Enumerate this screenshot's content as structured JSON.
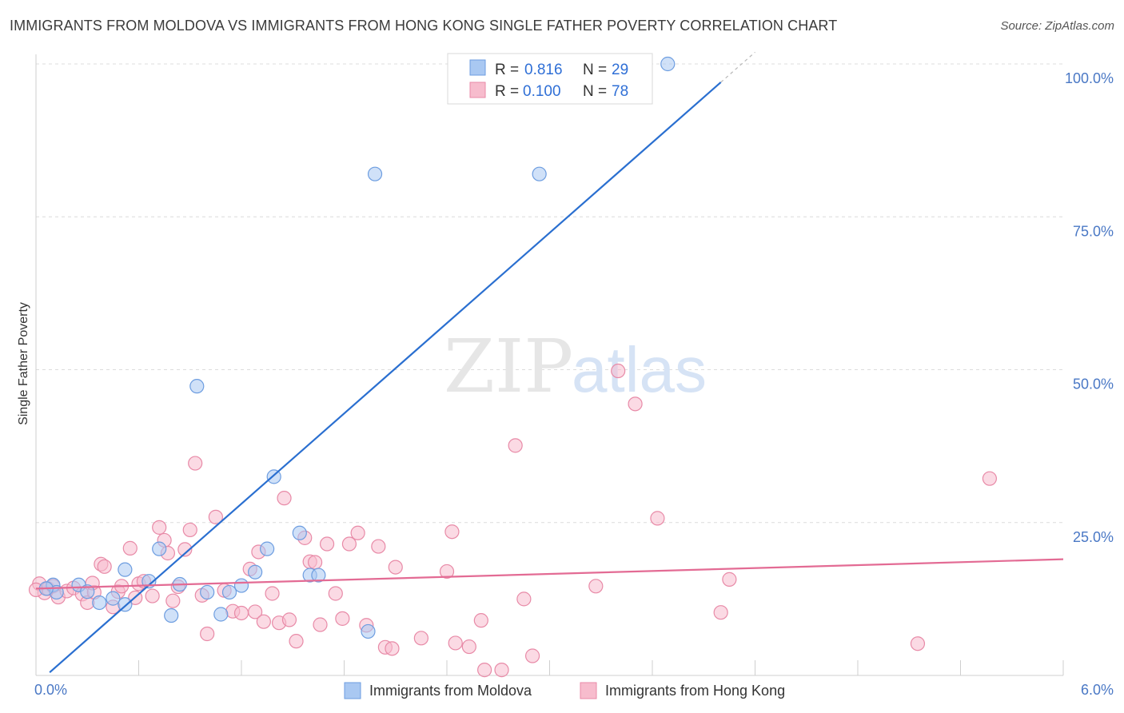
{
  "header": {
    "title": "IMMIGRANTS FROM MOLDOVA VS IMMIGRANTS FROM HONG KONG SINGLE FATHER POVERTY CORRELATION CHART",
    "source": "Source: ZipAtlas.com"
  },
  "watermark": {
    "zip": "ZIP",
    "atlas": "atlas"
  },
  "legend": {
    "r_label": "R =",
    "n_label": "N =",
    "series": [
      {
        "r": "0.816",
        "n": "29",
        "color": "#a9c8f2",
        "stroke": "#6d9de0"
      },
      {
        "r": "0.100",
        "n": "78",
        "color": "#f7bccd",
        "stroke": "#e88aa7"
      }
    ]
  },
  "chart_data": {
    "type": "scatter",
    "title": "IMMIGRANTS FROM MOLDOVA VS IMMIGRANTS FROM HONG KONG SINGLE FATHER POVERTY CORRELATION CHART",
    "xlabel": "",
    "ylabel": "Single Father Poverty",
    "xlim": [
      0,
      6
    ],
    "ylim": [
      0,
      100
    ],
    "x_tick_labels": [
      "0.0%",
      "6.0%"
    ],
    "y_ticks": [
      25,
      50,
      75,
      100
    ],
    "y_tick_labels": [
      "25.0%",
      "50.0%",
      "75.0%",
      "100.0%"
    ],
    "grid": true,
    "legend_placement": "top-center",
    "series": [
      {
        "name": "Immigrants from Moldova",
        "color": "#a9c8f2",
        "stroke": "#6d9de0",
        "line_color": "#2a6fd0",
        "trend": {
          "x0": 0.08,
          "y0": 0.5,
          "x1": 4.0,
          "y1": 97.0,
          "dash_to_x": 4.2
        },
        "points": [
          [
            0.1,
            14.8
          ],
          [
            0.12,
            13.6
          ],
          [
            0.25,
            14.8
          ],
          [
            0.3,
            13.7
          ],
          [
            0.37,
            11.9
          ],
          [
            0.45,
            12.6
          ],
          [
            0.52,
            11.6
          ],
          [
            0.52,
            17.3
          ],
          [
            0.66,
            15.4
          ],
          [
            0.72,
            20.7
          ],
          [
            0.79,
            9.8
          ],
          [
            0.84,
            14.9
          ],
          [
            0.94,
            47.3
          ],
          [
            1.0,
            13.6
          ],
          [
            1.08,
            10.0
          ],
          [
            1.13,
            13.6
          ],
          [
            1.2,
            14.7
          ],
          [
            1.28,
            16.9
          ],
          [
            1.35,
            20.7
          ],
          [
            1.39,
            32.5
          ],
          [
            1.54,
            23.3
          ],
          [
            1.6,
            16.4
          ],
          [
            1.65,
            16.4
          ],
          [
            1.94,
            7.2
          ],
          [
            1.98,
            82.0
          ],
          [
            2.94,
            82.0
          ],
          [
            3.25,
            100.0
          ],
          [
            3.69,
            100.0
          ],
          [
            0.06,
            14.2
          ]
        ]
      },
      {
        "name": "Immigrants from Hong Kong",
        "color": "#f7bccd",
        "stroke": "#e88aa7",
        "line_color": "#e36b94",
        "trend": {
          "x0": 0.0,
          "y0": 14.2,
          "x1": 6.0,
          "y1": 19.0
        },
        "points": [
          [
            0.02,
            15.0
          ],
          [
            0.05,
            13.5
          ],
          [
            0.07,
            14.2
          ],
          [
            0.1,
            14.6
          ],
          [
            0.13,
            12.8
          ],
          [
            0.18,
            13.8
          ],
          [
            0.22,
            14.3
          ],
          [
            0.27,
            13.3
          ],
          [
            0.3,
            11.9
          ],
          [
            0.34,
            13.6
          ],
          [
            0.33,
            15.1
          ],
          [
            0.38,
            18.2
          ],
          [
            0.4,
            17.8
          ],
          [
            0.45,
            11.2
          ],
          [
            0.48,
            13.7
          ],
          [
            0.5,
            14.6
          ],
          [
            0.55,
            20.8
          ],
          [
            0.58,
            12.7
          ],
          [
            0.6,
            15.0
          ],
          [
            0.63,
            15.4
          ],
          [
            0.68,
            13.0
          ],
          [
            0.72,
            24.2
          ],
          [
            0.75,
            22.1
          ],
          [
            0.77,
            20.0
          ],
          [
            0.8,
            12.2
          ],
          [
            0.83,
            14.5
          ],
          [
            0.87,
            20.6
          ],
          [
            0.9,
            23.8
          ],
          [
            0.93,
            34.7
          ],
          [
            0.97,
            13.1
          ],
          [
            1.0,
            6.8
          ],
          [
            1.05,
            25.9
          ],
          [
            1.1,
            13.9
          ],
          [
            1.15,
            10.5
          ],
          [
            1.2,
            10.2
          ],
          [
            1.25,
            17.4
          ],
          [
            1.28,
            10.4
          ],
          [
            1.3,
            20.2
          ],
          [
            1.33,
            8.8
          ],
          [
            1.38,
            13.4
          ],
          [
            1.42,
            8.6
          ],
          [
            1.45,
            29.0
          ],
          [
            1.48,
            9.1
          ],
          [
            1.52,
            5.6
          ],
          [
            1.57,
            22.5
          ],
          [
            1.6,
            18.6
          ],
          [
            1.63,
            18.5
          ],
          [
            1.66,
            8.3
          ],
          [
            1.7,
            21.5
          ],
          [
            1.75,
            13.4
          ],
          [
            1.79,
            9.3
          ],
          [
            1.83,
            21.5
          ],
          [
            1.88,
            23.3
          ],
          [
            1.93,
            8.2
          ],
          [
            2.0,
            21.1
          ],
          [
            2.04,
            4.6
          ],
          [
            2.08,
            4.4
          ],
          [
            2.1,
            17.7
          ],
          [
            2.25,
            6.1
          ],
          [
            2.4,
            17.0
          ],
          [
            2.43,
            23.5
          ],
          [
            2.45,
            5.3
          ],
          [
            2.53,
            4.7
          ],
          [
            2.6,
            9.0
          ],
          [
            2.62,
            0.9
          ],
          [
            2.72,
            0.9
          ],
          [
            2.8,
            37.6
          ],
          [
            2.85,
            12.5
          ],
          [
            2.9,
            3.2
          ],
          [
            3.27,
            14.6
          ],
          [
            3.4,
            49.8
          ],
          [
            3.5,
            44.4
          ],
          [
            3.63,
            25.7
          ],
          [
            4.0,
            10.3
          ],
          [
            4.05,
            15.7
          ],
          [
            5.15,
            5.2
          ],
          [
            5.57,
            32.2
          ],
          [
            0.0,
            14.0
          ]
        ]
      }
    ]
  }
}
